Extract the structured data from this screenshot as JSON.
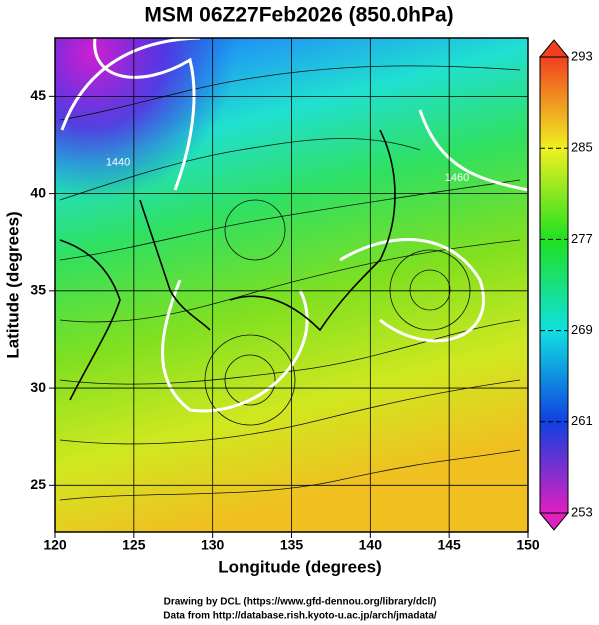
{
  "title": "MSM 06Z27Feb2026 (850.0hPa)",
  "xlabel": "Longitude (degrees)",
  "ylabel": "Latitude  (degrees)",
  "xlim": [
    120,
    150
  ],
  "ylim": [
    22.6,
    48
  ],
  "xticks": [
    120,
    125,
    130,
    135,
    140,
    145,
    150
  ],
  "yticks": [
    25,
    30,
    35,
    40,
    45
  ],
  "grid": true,
  "colorbar": {
    "lim": [
      253,
      293
    ],
    "ticks": [
      253,
      261,
      269,
      277,
      285,
      293
    ],
    "colors": [
      "#e020c0",
      "#1040e0",
      "#10e0e0",
      "#20e020",
      "#f0f020",
      "#f04020"
    ]
  },
  "contour_labels": [
    {
      "text": "1440",
      "lon": 124,
      "lat": 41.6
    },
    {
      "text": "1460",
      "lon": 145.5,
      "lat": 40.8
    }
  ],
  "credits": [
    "Drawing by DCL (https://www.gfd-dennou.org/library/dcl/)",
    "Data from http://database.rish.kyoto-u.ac.jp/arch/jmadata/"
  ]
}
